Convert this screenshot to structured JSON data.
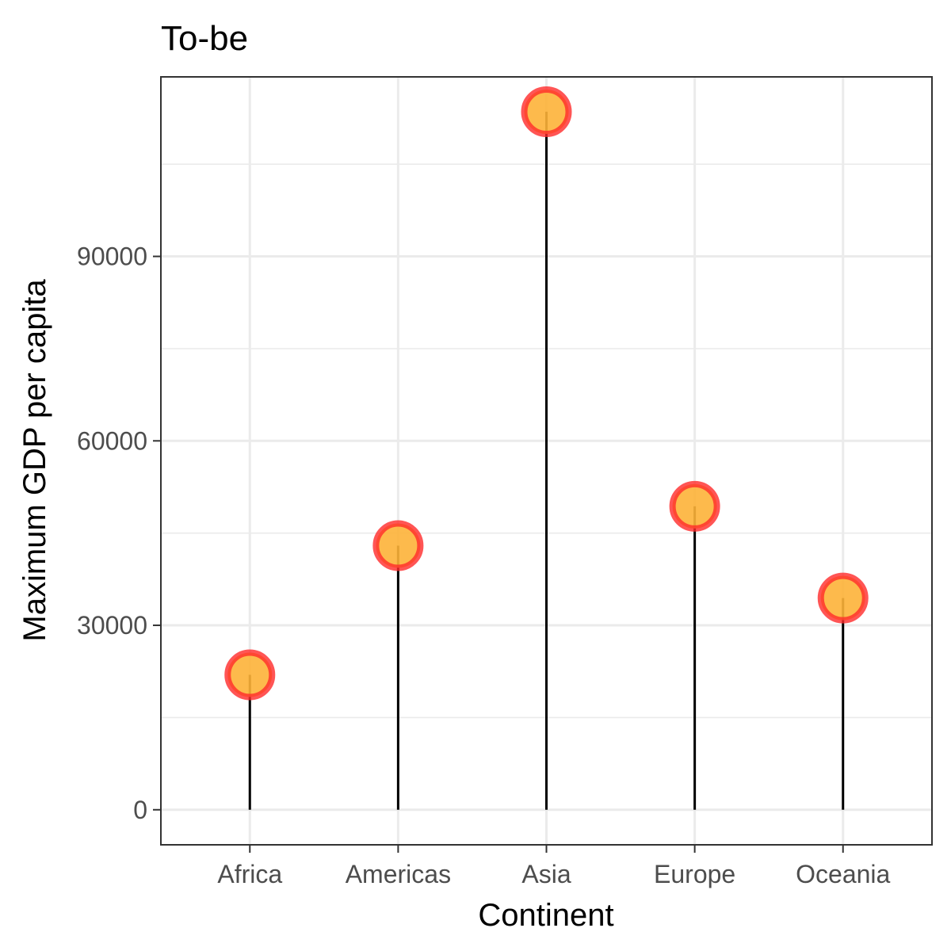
{
  "chart_data": {
    "type": "lollipop",
    "title": "To-be",
    "xlabel": "Continent",
    "ylabel": "Maximum GDP per capita",
    "categories": [
      "Africa",
      "Americas",
      "Asia",
      "Europe",
      "Oceania"
    ],
    "values": [
      21951,
      42952,
      113523,
      49357,
      34435
    ],
    "ylim": [
      -5700,
      119200
    ],
    "y_ticks": [
      0,
      30000,
      60000,
      90000
    ],
    "y_tick_labels": [
      "0",
      "30000",
      "60000",
      "90000"
    ],
    "y_minor_ticks": [
      15000,
      45000,
      75000,
      105000
    ],
    "grid": true,
    "colors": {
      "point_fill": "#fdb338",
      "point_outline": "#ff2a2a",
      "stem": "#000000",
      "grid": "#ebebeb",
      "panel_border": "#333333"
    }
  }
}
